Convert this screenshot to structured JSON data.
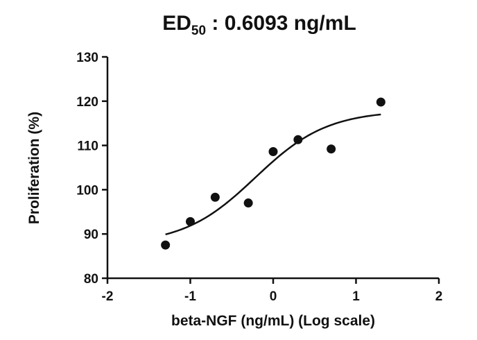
{
  "chart_data": {
    "type": "scatter",
    "title": {
      "prefix": "ED",
      "subscript": "50",
      "suffix": " : 0.6093  ng/mL"
    },
    "xlabel": "beta-NGF (ng/mL) (Log scale)",
    "ylabel": "Proliferation (%)",
    "xlim": [
      -2,
      2
    ],
    "ylim": [
      80,
      130
    ],
    "x_ticks": [
      -2,
      -1,
      0,
      1,
      2
    ],
    "y_ticks": [
      80,
      90,
      100,
      110,
      120,
      130
    ],
    "grid": false,
    "legend": "none",
    "series": [
      {
        "points": [
          {
            "x": -1.3,
            "y": 87.5
          },
          {
            "x": -1.0,
            "y": 92.8
          },
          {
            "x": -0.7,
            "y": 98.3
          },
          {
            "x": -0.3,
            "y": 97.0
          },
          {
            "x": 0.0,
            "y": 108.6
          },
          {
            "x": 0.3,
            "y": 111.3
          },
          {
            "x": 0.7,
            "y": 109.2
          },
          {
            "x": 1.3,
            "y": 119.8
          }
        ],
        "fit": {
          "model": "four-parameter logistic",
          "bottom": 87.6,
          "top": 117.9,
          "log_ed50": -0.2151,
          "hill_slope": 1.0,
          "x_range": [
            -1.3,
            1.3
          ]
        }
      }
    ]
  }
}
